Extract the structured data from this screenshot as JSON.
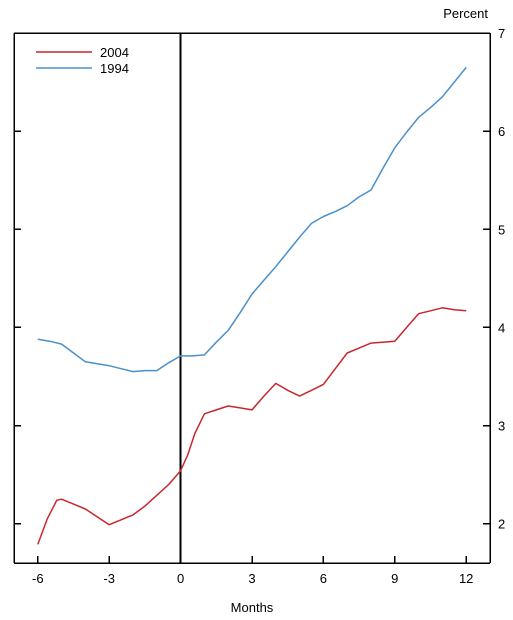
{
  "chart_data": {
    "type": "line",
    "title": "",
    "xlabel": "Months",
    "ylabel": "Percent",
    "xlim": [
      -7,
      13
    ],
    "ylim": [
      1.6,
      7.0
    ],
    "x_ticks": [
      -6,
      -3,
      0,
      3,
      6,
      9,
      12
    ],
    "x_tick_labels": [
      "-6",
      "-3",
      "0",
      "3",
      "6",
      "9",
      "12"
    ],
    "y_ticks": [
      2,
      3,
      4,
      5,
      6,
      7
    ],
    "y_tick_labels": [
      "2",
      "3",
      "4",
      "5",
      "6",
      "7"
    ],
    "y_axis_side": "right",
    "grid": false,
    "legend_position": "top-left",
    "reference_line_x": 0,
    "colors": {
      "series_2004": "#c8272e",
      "series_1994": "#4a90c9",
      "axis": "#000000"
    },
    "series": [
      {
        "name": "2004",
        "color": "#c8272e",
        "points": [
          [
            -6.0,
            1.79
          ],
          [
            -5.6,
            2.05
          ],
          [
            -5.2,
            2.24
          ],
          [
            -5.0,
            2.25
          ],
          [
            -4.5,
            2.2
          ],
          [
            -4.0,
            2.15
          ],
          [
            -3.5,
            2.07
          ],
          [
            -3.0,
            1.99
          ],
          [
            -2.5,
            2.04
          ],
          [
            -2.0,
            2.09
          ],
          [
            -1.5,
            2.18
          ],
          [
            -1.0,
            2.29
          ],
          [
            -0.5,
            2.4
          ],
          [
            0.0,
            2.54
          ],
          [
            0.3,
            2.7
          ],
          [
            0.6,
            2.92
          ],
          [
            1.0,
            3.12
          ],
          [
            1.5,
            3.16
          ],
          [
            2.0,
            3.2
          ],
          [
            2.5,
            3.18
          ],
          [
            3.0,
            3.16
          ],
          [
            3.5,
            3.3
          ],
          [
            4.0,
            3.43
          ],
          [
            4.5,
            3.36
          ],
          [
            5.0,
            3.3
          ],
          [
            5.5,
            3.36
          ],
          [
            6.0,
            3.42
          ],
          [
            6.5,
            3.58
          ],
          [
            7.0,
            3.74
          ],
          [
            7.5,
            3.79
          ],
          [
            8.0,
            3.84
          ],
          [
            8.5,
            3.85
          ],
          [
            9.0,
            3.86
          ],
          [
            9.5,
            4.0
          ],
          [
            10.0,
            4.14
          ],
          [
            10.5,
            4.17
          ],
          [
            11.0,
            4.2
          ],
          [
            11.5,
            4.18
          ],
          [
            12.0,
            4.17
          ]
        ]
      },
      {
        "name": "1994",
        "color": "#4a90c9",
        "points": [
          [
            -6.0,
            3.88
          ],
          [
            -5.5,
            3.86
          ],
          [
            -5.0,
            3.83
          ],
          [
            -4.5,
            3.74
          ],
          [
            -4.0,
            3.65
          ],
          [
            -3.5,
            3.63
          ],
          [
            -3.0,
            3.61
          ],
          [
            -2.5,
            3.58
          ],
          [
            -2.0,
            3.55
          ],
          [
            -1.5,
            3.56
          ],
          [
            -1.0,
            3.56
          ],
          [
            -0.5,
            3.64
          ],
          [
            0.0,
            3.71
          ],
          [
            0.5,
            3.71
          ],
          [
            1.0,
            3.72
          ],
          [
            1.5,
            3.85
          ],
          [
            2.0,
            3.97
          ],
          [
            2.5,
            4.15
          ],
          [
            3.0,
            4.34
          ],
          [
            3.5,
            4.48
          ],
          [
            4.0,
            4.62
          ],
          [
            4.5,
            4.77
          ],
          [
            5.0,
            4.92
          ],
          [
            5.5,
            5.06
          ],
          [
            6.0,
            5.13
          ],
          [
            6.5,
            5.18
          ],
          [
            7.0,
            5.24
          ],
          [
            7.5,
            5.33
          ],
          [
            8.0,
            5.4
          ],
          [
            8.5,
            5.62
          ],
          [
            9.0,
            5.83
          ],
          [
            9.5,
            5.99
          ],
          [
            10.0,
            6.14
          ],
          [
            10.5,
            6.24
          ],
          [
            11.0,
            6.35
          ],
          [
            11.5,
            6.5
          ],
          [
            12.0,
            6.65
          ]
        ]
      }
    ]
  }
}
